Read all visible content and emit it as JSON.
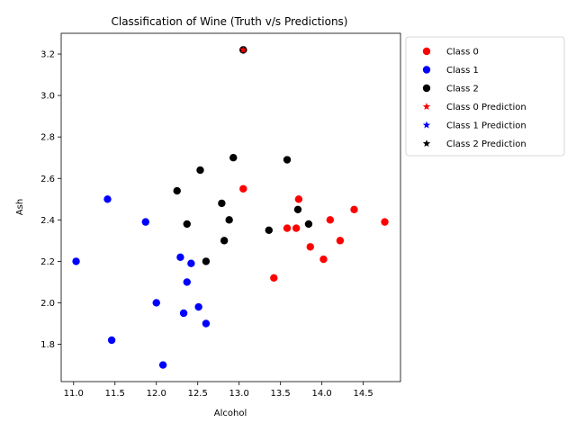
{
  "chart_data": {
    "type": "scatter",
    "title": "Classification of Wine (Truth v/s Predictions)",
    "xlabel": "Alcohol",
    "ylabel": "Ash",
    "xlim": [
      10.85,
      14.95
    ],
    "ylim": [
      1.62,
      3.3
    ],
    "xticks": [
      "11.0",
      "11.5",
      "12.0",
      "12.5",
      "13.0",
      "13.5",
      "14.0",
      "14.5"
    ],
    "xtick_values": [
      11.0,
      11.5,
      12.0,
      12.5,
      13.0,
      13.5,
      14.0,
      14.5
    ],
    "yticks": [
      "1.8",
      "2.0",
      "2.2",
      "2.4",
      "2.6",
      "2.8",
      "3.0",
      "3.2"
    ],
    "ytick_values": [
      1.8,
      2.0,
      2.2,
      2.4,
      2.6,
      2.8,
      3.0,
      3.2
    ],
    "grid": false,
    "legend_position": "outside-right-top",
    "series": [
      {
        "name": "Class 0",
        "marker": "circle",
        "color": "#ff0000",
        "points": [
          [
            13.05,
            2.55
          ],
          [
            13.72,
            2.5
          ],
          [
            14.1,
            2.4
          ],
          [
            14.39,
            2.45
          ],
          [
            14.76,
            2.39
          ],
          [
            13.58,
            2.36
          ],
          [
            13.69,
            2.36
          ],
          [
            13.86,
            2.27
          ],
          [
            14.22,
            2.3
          ],
          [
            14.02,
            2.21
          ],
          [
            13.42,
            2.12
          ],
          [
            13.05,
            3.22
          ]
        ]
      },
      {
        "name": "Class 1",
        "marker": "circle",
        "color": "#0000ff",
        "points": [
          [
            11.41,
            2.5
          ],
          [
            11.87,
            2.39
          ],
          [
            11.03,
            2.2
          ],
          [
            12.29,
            2.22
          ],
          [
            12.42,
            2.19
          ],
          [
            12.37,
            2.1
          ],
          [
            12.0,
            2.0
          ],
          [
            12.51,
            1.98
          ],
          [
            12.33,
            1.95
          ],
          [
            12.6,
            1.9
          ],
          [
            11.46,
            1.82
          ],
          [
            12.08,
            1.7
          ]
        ]
      },
      {
        "name": "Class 2",
        "marker": "circle",
        "color": "#000000",
        "points": [
          [
            13.05,
            3.22
          ],
          [
            12.93,
            2.7
          ],
          [
            13.58,
            2.69
          ],
          [
            12.53,
            2.64
          ],
          [
            12.25,
            2.54
          ],
          [
            12.79,
            2.48
          ],
          [
            13.71,
            2.45
          ],
          [
            12.88,
            2.4
          ],
          [
            12.37,
            2.38
          ],
          [
            13.84,
            2.38
          ],
          [
            13.36,
            2.35
          ],
          [
            12.82,
            2.3
          ],
          [
            12.6,
            2.2
          ]
        ]
      },
      {
        "name": "Class 0 Prediction",
        "marker": "star",
        "color": "#ff0000",
        "points": [
          [
            13.05,
            3.22
          ]
        ]
      },
      {
        "name": "Class 1 Prediction",
        "marker": "star",
        "color": "#0000ff",
        "points": []
      },
      {
        "name": "Class 2 Prediction",
        "marker": "star",
        "color": "#000000",
        "points": []
      }
    ]
  }
}
